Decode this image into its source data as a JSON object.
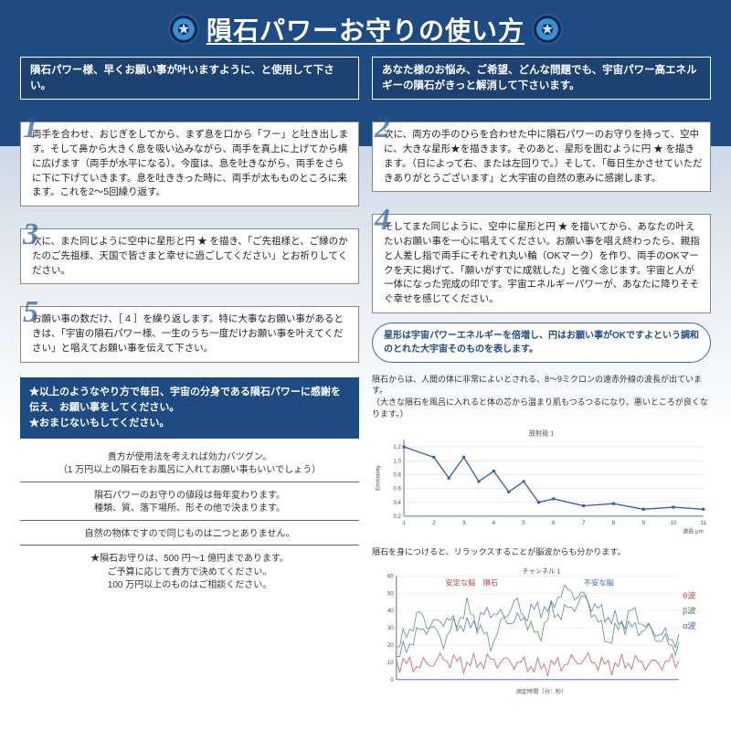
{
  "title": "隕石パワーお守りの使い方",
  "sub_left": "隕石パワー様、早くお願い事が叶いますように、と使用して下さい。",
  "sub_right": "あなた様のお悩み、ご希望、どんな問題でも、宇宙パワー高エネルギーの隕石がきっと解消して下さいます。",
  "steps": {
    "s1": {
      "num": "1",
      "text": "両手を合わせ、おじぎをしてから、まず息を口から「フー」と吐き出します。そして鼻から大きく息を吸い込みながら、両手を真上に上げてから横に広げます（両手が水平になる）。今度は、息を吐きながら、両手をさらに下に下げていきます。息を吐ききった時に、両手が太もものところに来ます。これを2〜5回繰り返す。"
    },
    "s2": {
      "num": "2",
      "text": "次に、両方の手のひらを合わせた中に隕石パワーのお守りを持って、空中に、大きな星形★を描きます。そのあと、星形を囲むように円 ★ を描きます。（日によって右、または左回りで。）そして、「毎日生かさせていただきありがとうございます」と大宇宙の自然の恵みに感謝します。"
    },
    "s3": {
      "num": "3",
      "text": "次に、また同じように空中に星形と円 ★ を描き、「ご先祖様と、ご縁のかたのご先祖様、天国で皆さまと幸せに過ごしてください」とお祈りしてください。"
    },
    "s4": {
      "num": "4",
      "text": "そしてまた同じように、空中に星形と円 ★ を描いてから、あなたの叶えたいお願い事を一心に唱えてください。お願い事を唱え終わったら、親指と人差し指で両手にそれぞれ丸い輪（OKマーク）を作り、両手のOKマークを天に掲げて、「願いがすでに成就した」と強く念じます。宇宙と人が一体になった完成の印です。宇宙エネルギーパワーが、あなたに降りそそぐ幸せを感じてください。"
    },
    "s5": {
      "num": "5",
      "text": "お願い事の数だけ、［ 4 ］を繰り返します。特に大事なお願い事があるときは、「宇宙の隕石パワー様、一生のうち一度だけお願い事を叶えてください」と唱えてお願い事を伝えて下さい。"
    }
  },
  "instrux": "★以上のようなやり方で毎日、宇宙の分身である隕石パワーに感謝を伝え、お願い事をしてください。\n★おまじないもしてください。",
  "notes": [
    "貴方が使用法を考えれば効力バツグン。\n（1 万円以上の隕石をお風呂に入れてお願い事もいいでしょう）",
    "隕石パワーのお守りの値段は毎年変わります。\n種類、質、落下場所、形その他で決まります。",
    "自然の物体ですので同じものは二つとありません。",
    "★隕石お守りは、500 円〜1 億円まであります。\nご予算に応じて貴方で決めてください。\n100 万円以上のものはご相談ください。"
  ],
  "callout": "星形は宇宙パワーエネルギーを倍増し、円はお願い事がOKですよという調和のとれた大宇宙そのものを表します。",
  "sci1": "隕石からは、人間の体に非常によいとされる、8〜9ミクロンの遠赤外線の波長が出ています。\n（大きな隕石を風呂に入れると体の芯から温まり肌もつるつるになり、悪いところが良くなります。）",
  "sci2": "隕石を身につけると、リラックスすることが脳波からも分かります。",
  "chart1": {
    "type": "line",
    "title": "放射能 1",
    "xlabel": "波長 μm",
    "ylabel": "Emissivity",
    "xlim": [
      1,
      11
    ],
    "ylim": [
      0.2,
      1.3
    ],
    "xtick_step": 1,
    "ytick_step": 0.2,
    "x": [
      1,
      2,
      2.5,
      3,
      3.5,
      4,
      4.5,
      5,
      5.5,
      6,
      7,
      8,
      9,
      10,
      11
    ],
    "y": [
      1.2,
      1.05,
      0.75,
      1.05,
      0.7,
      0.85,
      0.55,
      0.7,
      0.4,
      0.45,
      0.35,
      0.38,
      0.3,
      0.33,
      0.3
    ],
    "line_color": "#3a5fa0",
    "bg": "#ffffff",
    "axis_color": "#5577aa",
    "grid_color": "#d0d8e8",
    "axis_fontsize": 6
  },
  "chart2": {
    "type": "multiline",
    "title": "チャンネル 1",
    "xlabel": "測定時間（分：秒）",
    "xlim": [
      0,
      12
    ],
    "ylim": [
      0,
      60
    ],
    "ytick_step": 10,
    "time": [
      0,
      1,
      2,
      3,
      4,
      5,
      6,
      7,
      8,
      9,
      10,
      11,
      12
    ],
    "series": [
      {
        "name": "θ波",
        "color": "#c04848",
        "y": [
          10,
          8,
          12,
          9,
          11,
          10,
          7,
          9,
          12,
          8,
          10,
          9,
          11
        ]
      },
      {
        "name": "β波",
        "color": "#4a8a4a",
        "y": [
          18,
          38,
          22,
          42,
          20,
          46,
          24,
          52,
          48,
          22,
          40,
          25,
          18
        ]
      },
      {
        "name": "α波",
        "color": "#4a6ac0",
        "y": [
          12,
          28,
          35,
          30,
          40,
          33,
          42,
          38,
          47,
          36,
          30,
          28,
          22
        ]
      }
    ],
    "markers": [
      {
        "text": "安定な脳　隕石",
        "x": 3.2,
        "color": "#c04848"
      },
      {
        "text": "不安な脳",
        "x": 8.6,
        "color": "#4a6ac0"
      }
    ],
    "bg": "#ffffff",
    "axis_color": "#5577aa",
    "grid_color": "#e0e6f0",
    "axis_fontsize": 6
  },
  "colors": {
    "primary": "#1e4b82",
    "accent": "#2a5a95",
    "page_bg": "#ffffff"
  }
}
